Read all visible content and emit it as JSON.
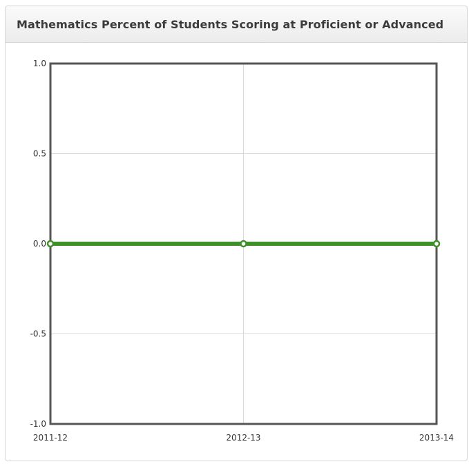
{
  "panel": {
    "title": "Mathematics Percent of Students Scoring at Proficient or Advanced"
  },
  "colors": {
    "series": "#3d9128",
    "marker_fill": "#ffffff",
    "frame": "#555555",
    "grid": "#d9d9d9"
  },
  "chart_data": {
    "type": "line",
    "title": "Mathematics Percent of Students Scoring at Proficient or Advanced",
    "xlabel": "",
    "ylabel": "",
    "categories": [
      "2011-12",
      "2012-13",
      "2013-14"
    ],
    "series": [
      {
        "values": [
          0.0,
          0.0,
          0.0
        ]
      }
    ],
    "ylim": [
      -1.0,
      1.0
    ],
    "yticks": [
      "1.0",
      "0.5",
      "0.0",
      "-0.5",
      "-1.0"
    ],
    "grid": true,
    "legend": "none"
  }
}
